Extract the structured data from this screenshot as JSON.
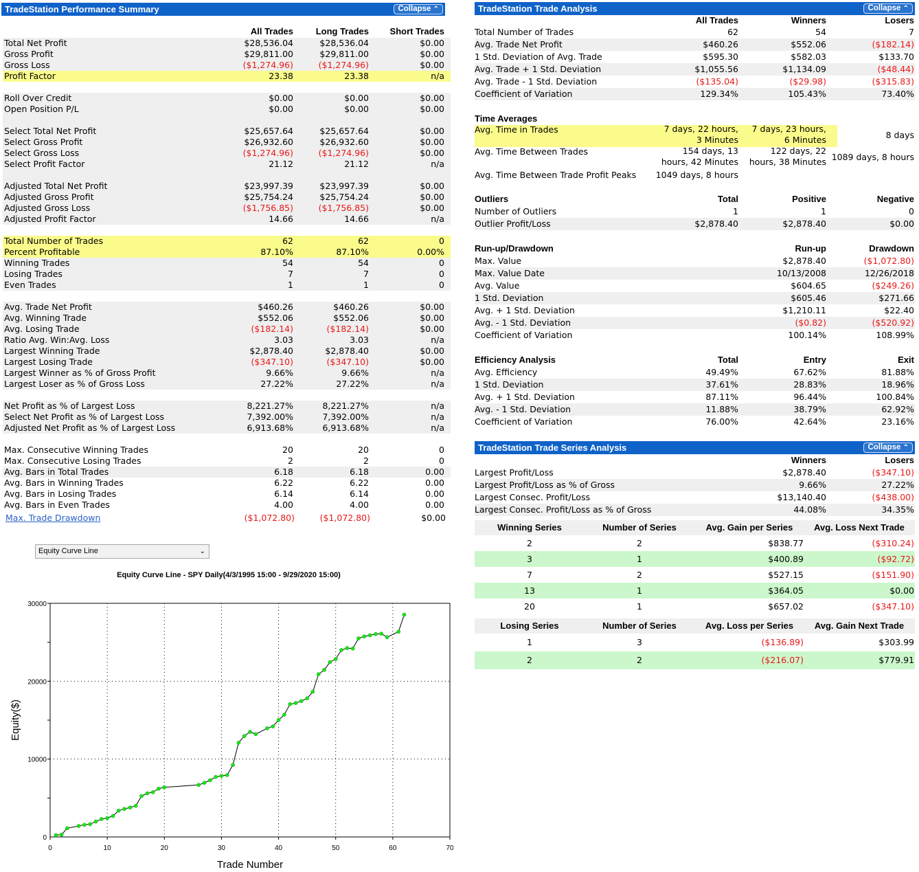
{
  "summary": {
    "title": "TradeStation Performance Summary",
    "collapse": "Collapse",
    "columns": [
      "All Trades",
      "Long Trades",
      "Short Trades"
    ],
    "rows": [
      {
        "label": "Total Net Profit",
        "v": [
          "$28,536.04",
          "$28,536.04",
          "$0.00"
        ],
        "style": "shade"
      },
      {
        "label": "Gross Profit",
        "v": [
          "$29,811.00",
          "$29,811.00",
          "$0.00"
        ],
        "style": "shade"
      },
      {
        "label": "Gross Loss",
        "v": [
          "($1,274.96)",
          "($1,274.96)",
          "$0.00"
        ],
        "style": "shade"
      },
      {
        "label": "Profit Factor",
        "v": [
          "23.38",
          "23.38",
          "n/a"
        ],
        "style": "hl"
      },
      {
        "label": "",
        "v": [
          "",
          "",
          ""
        ],
        "style": "gap"
      },
      {
        "label": "Roll Over Credit",
        "v": [
          "$0.00",
          "$0.00",
          "$0.00"
        ],
        "style": "shade"
      },
      {
        "label": "Open Position P/L",
        "v": [
          "$0.00",
          "$0.00",
          "$0.00"
        ],
        "style": "shade"
      },
      {
        "label": "",
        "v": [
          "",
          "",
          ""
        ],
        "style": "shade"
      },
      {
        "label": "Select Total Net Profit",
        "v": [
          "$25,657.64",
          "$25,657.64",
          "$0.00"
        ],
        "style": "shade"
      },
      {
        "label": "Select Gross Profit",
        "v": [
          "$26,932.60",
          "$26,932.60",
          "$0.00"
        ],
        "style": "shade"
      },
      {
        "label": "Select Gross Loss",
        "v": [
          "($1,274.96)",
          "($1,274.96)",
          "$0.00"
        ],
        "style": "shade"
      },
      {
        "label": "Select Profit Factor",
        "v": [
          "21.12",
          "21.12",
          "n/a"
        ],
        "style": "shade"
      },
      {
        "label": "",
        "v": [
          "",
          "",
          ""
        ],
        "style": "shade"
      },
      {
        "label": "Adjusted Total Net Profit",
        "v": [
          "$23,997.39",
          "$23,997.39",
          "$0.00"
        ],
        "style": "shade"
      },
      {
        "label": "Adjusted Gross Profit",
        "v": [
          "$25,754.24",
          "$25,754.24",
          "$0.00"
        ],
        "style": "shade"
      },
      {
        "label": "Adjusted Gross Loss",
        "v": [
          "($1,756.85)",
          "($1,756.85)",
          "$0.00"
        ],
        "style": "shade"
      },
      {
        "label": "Adjusted Profit Factor",
        "v": [
          "14.66",
          "14.66",
          "n/a"
        ],
        "style": "shade"
      },
      {
        "label": "",
        "v": [
          "",
          "",
          ""
        ],
        "style": "gap"
      },
      {
        "label": "Total Number of Trades",
        "v": [
          "62",
          "62",
          "0"
        ],
        "style": "hl"
      },
      {
        "label": "Percent Profitable",
        "v": [
          "87.10%",
          "87.10%",
          "0.00%"
        ],
        "style": "hl"
      },
      {
        "label": "Winning Trades",
        "v": [
          "54",
          "54",
          "0"
        ],
        "style": "shade"
      },
      {
        "label": "Losing Trades",
        "v": [
          "7",
          "7",
          "0"
        ],
        "style": "shade"
      },
      {
        "label": "Even Trades",
        "v": [
          "1",
          "1",
          "0"
        ],
        "style": "shade"
      },
      {
        "label": "",
        "v": [
          "",
          "",
          ""
        ],
        "style": "gap"
      },
      {
        "label": "Avg. Trade Net Profit",
        "v": [
          "$460.26",
          "$460.26",
          "$0.00"
        ],
        "style": "shade"
      },
      {
        "label": "Avg. Winning Trade",
        "v": [
          "$552.06",
          "$552.06",
          "$0.00"
        ],
        "style": "shade"
      },
      {
        "label": "Avg. Losing Trade",
        "v": [
          "($182.14)",
          "($182.14)",
          "$0.00"
        ],
        "style": "shade"
      },
      {
        "label": "Ratio Avg. Win:Avg. Loss",
        "v": [
          "3.03",
          "3.03",
          "n/a"
        ],
        "style": "shade"
      },
      {
        "label": "Largest Winning Trade",
        "v": [
          "$2,878.40",
          "$2,878.40",
          "$0.00"
        ],
        "style": "shade"
      },
      {
        "label": "Largest Losing Trade",
        "v": [
          "($347.10)",
          "($347.10)",
          "$0.00"
        ],
        "style": "shade"
      },
      {
        "label": "Largest Winner as % of Gross Profit",
        "v": [
          "9.66%",
          "9.66%",
          "n/a"
        ],
        "style": "shade"
      },
      {
        "label": "Largest Loser as % of Gross Loss",
        "v": [
          "27.22%",
          "27.22%",
          "n/a"
        ],
        "style": "shade"
      },
      {
        "label": "",
        "v": [
          "",
          "",
          ""
        ],
        "style": "gap"
      },
      {
        "label": "Net Profit as % of Largest Loss",
        "v": [
          "8,221.27%",
          "8,221.27%",
          "n/a"
        ],
        "style": "shade"
      },
      {
        "label": "Select Net Profit as % of Largest Loss",
        "v": [
          "7,392.00%",
          "7,392.00%",
          "n/a"
        ],
        "style": "shade"
      },
      {
        "label": "Adjusted Net Profit as % of Largest Loss",
        "v": [
          "6,913.68%",
          "6,913.68%",
          "n/a"
        ],
        "style": "shade"
      },
      {
        "label": "",
        "v": [
          "",
          "",
          ""
        ],
        "style": "gap"
      },
      {
        "label": "Max. Consecutive Winning Trades",
        "v": [
          "20",
          "20",
          "0"
        ],
        "style": "gap"
      },
      {
        "label": "Max. Consecutive Losing Trades",
        "v": [
          "2",
          "2",
          "0"
        ],
        "style": "gap"
      },
      {
        "label": "Avg. Bars in Total Trades",
        "v": [
          "6.18",
          "6.18",
          "0.00"
        ],
        "style": "shade"
      },
      {
        "label": "Avg. Bars in Winning Trades",
        "v": [
          "6.22",
          "6.22",
          "0.00"
        ],
        "style": "gap"
      },
      {
        "label": "Avg. Bars in Losing Trades",
        "v": [
          "6.14",
          "6.14",
          "0.00"
        ],
        "style": "gap"
      },
      {
        "label": "Avg. Bars in Even Trades",
        "v": [
          "4.00",
          "4.00",
          "0.00"
        ],
        "style": "gap"
      }
    ],
    "drawdown": {
      "label": "Max. Trade Drawdown",
      "v": [
        "($1,072.80)",
        "($1,072.80)",
        "$0.00"
      ]
    }
  },
  "dropdown": {
    "selected": "Equity Curve Line"
  },
  "chart_data": {
    "type": "line",
    "title": "Equity Curve Line - SPY Daily(4/3/1995 15:00 - 9/29/2020 15:00)",
    "xlabel": "Trade Number",
    "ylabel": "Equity($)",
    "xlim": [
      0,
      70
    ],
    "ylim": [
      0,
      30000
    ],
    "x_ticks": [
      "0",
      "10",
      "20",
      "30",
      "40",
      "50",
      "60",
      "70"
    ],
    "y_ticks": [
      "0",
      "10000",
      "20000",
      "30000"
    ],
    "grid": true,
    "color": "#19e619",
    "x": [
      1,
      2,
      3,
      5,
      6,
      7,
      8,
      9,
      10,
      11,
      12,
      13,
      14,
      15,
      16,
      17,
      18,
      19,
      20,
      26,
      27,
      28,
      29,
      30,
      31,
      32,
      33,
      34,
      35,
      36,
      38,
      39,
      40,
      41,
      42,
      43,
      44,
      45,
      46,
      47,
      48,
      49,
      50,
      51,
      52,
      53,
      54,
      55,
      56,
      57,
      58,
      59,
      61,
      62
    ],
    "y": [
      230,
      300,
      1120,
      1410,
      1560,
      1640,
      1980,
      2300,
      2430,
      2700,
      3380,
      3600,
      3780,
      4000,
      5250,
      5600,
      5750,
      6200,
      6380,
      6680,
      6950,
      7280,
      7700,
      7840,
      7950,
      9250,
      12100,
      12950,
      13500,
      13200,
      13950,
      14200,
      15000,
      15700,
      17050,
      17200,
      17450,
      17800,
      18650,
      20900,
      21450,
      22450,
      22850,
      24000,
      24250,
      24200,
      25500,
      25750,
      25900,
      26050,
      26100,
      25650,
      26350,
      28536
    ]
  },
  "analysis": {
    "title": "TradeStation Trade Analysis",
    "collapse": "Collapse",
    "columns": [
      "All Trades",
      "Winners",
      "Losers"
    ],
    "rows": [
      {
        "label": "Total Number of Trades",
        "v": [
          "62",
          "54",
          "7"
        ]
      },
      {
        "label": "Avg. Trade Net Profit",
        "v": [
          "$460.26",
          "$552.06",
          "($182.14)"
        ]
      },
      {
        "label": "1 Std. Deviation of Avg. Trade",
        "v": [
          "$595.30",
          "$582.03",
          "$133.70"
        ]
      },
      {
        "label": "Avg. Trade + 1 Std. Deviation",
        "v": [
          "$1,055.56",
          "$1,134.09",
          "($48.44)"
        ]
      },
      {
        "label": "Avg. Trade - 1 Std. Deviation",
        "v": [
          "($135.04)",
          "($29.98)",
          "($315.83)"
        ]
      },
      {
        "label": "Coefficient of Variation",
        "v": [
          "129.34%",
          "105.43%",
          "73.40%"
        ]
      }
    ],
    "time": {
      "heading": "Time Averages",
      "in_trades": {
        "label": "Avg. Time in Trades",
        "v1a": "7 days, 22 hours,",
        "v1b": "3 Minutes",
        "v2a": "7 days, 23 hours,",
        "v2b": "6 Minutes",
        "v3": "8 days"
      },
      "between": {
        "label": "Avg. Time Between Trades",
        "v1a": "154 days, 13",
        "v1b": "hours, 42 Minutes",
        "v2a": "122 days, 22",
        "v2b": "hours, 38 Minutes",
        "v3": "1089 days, 8 hours"
      },
      "peaks": {
        "label": "Avg. Time Between Trade Profit Peaks",
        "v1": "1049 days, 8 hours"
      }
    },
    "outliers": {
      "heading": "Outliers",
      "columns": [
        "Total",
        "Positive",
        "Negative"
      ],
      "rows": [
        {
          "label": "Number of Outliers",
          "v": [
            "1",
            "1",
            "0"
          ]
        },
        {
          "label": "Outlier Profit/Loss",
          "v": [
            "$2,878.40",
            "$2,878.40",
            "$0.00"
          ]
        }
      ]
    },
    "runup": {
      "heading": "Run-up/Drawdown",
      "columns": [
        "Run-up",
        "Drawdown"
      ],
      "rows": [
        {
          "label": "Max. Value",
          "v": [
            "$2,878.40",
            "($1,072.80)"
          ]
        },
        {
          "label": "Max. Value Date",
          "v": [
            "10/13/2008",
            "12/26/2018"
          ]
        },
        {
          "label": "Avg. Value",
          "v": [
            "$604.65",
            "($249.26)"
          ]
        },
        {
          "label": "1 Std. Deviation",
          "v": [
            "$605.46",
            "$271.66"
          ]
        },
        {
          "label": "Avg. + 1 Std. Deviation",
          "v": [
            "$1,210.11",
            "$22.40"
          ]
        },
        {
          "label": "Avg. - 1 Std. Deviation",
          "v": [
            "($0.82)",
            "($520.92)"
          ]
        },
        {
          "label": "Coefficient of Variation",
          "v": [
            "100.14%",
            "108.99%"
          ]
        }
      ]
    },
    "efficiency": {
      "heading": "Efficiency Analysis",
      "columns": [
        "Total",
        "Entry",
        "Exit"
      ],
      "rows": [
        {
          "label": "Avg. Efficiency",
          "v": [
            "49.49%",
            "67.62%",
            "81.88%"
          ]
        },
        {
          "label": "1 Std. Deviation",
          "v": [
            "37.61%",
            "28.83%",
            "18.96%"
          ]
        },
        {
          "label": "Avg. + 1 Std. Deviation",
          "v": [
            "87.11%",
            "96.44%",
            "100.84%"
          ]
        },
        {
          "label": "Avg. - 1 Std. Deviation",
          "v": [
            "11.88%",
            "38.79%",
            "62.92%"
          ]
        },
        {
          "label": "Coefficient of Variation",
          "v": [
            "76.00%",
            "42.64%",
            "23.16%"
          ]
        }
      ]
    }
  },
  "series": {
    "title": "TradeStation Trade Series Analysis",
    "collapse": "Collapse",
    "columns": [
      "Winners",
      "Losers"
    ],
    "rows": [
      {
        "label": "Largest Profit/Loss",
        "v": [
          "$2,878.40",
          "($347.10)"
        ]
      },
      {
        "label": "Largest Profit/Loss as % of Gross",
        "v": [
          "9.66%",
          "27.22%"
        ]
      },
      {
        "label": "Largest Consec. Profit/Loss",
        "v": [
          "$13,140.40",
          "($438.00)"
        ]
      },
      {
        "label": "Largest Consec. Profit/Loss as % of Gross",
        "v": [
          "44.08%",
          "34.35%"
        ]
      }
    ],
    "winning": {
      "columns": [
        "Winning Series",
        "Number of Series",
        "Avg. Gain per Series",
        "Avg. Loss Next Trade"
      ],
      "rows": [
        [
          "2",
          "2",
          "$838.77",
          "($310.24)"
        ],
        [
          "3",
          "1",
          "$400.89",
          "($92.72)"
        ],
        [
          "7",
          "2",
          "$527.15",
          "($151.90)"
        ],
        [
          "13",
          "1",
          "$364.05",
          "$0.00"
        ],
        [
          "20",
          "1",
          "$657.02",
          "($347.10)"
        ]
      ]
    },
    "losing": {
      "columns": [
        "Losing Series",
        "Number of Series",
        "Avg. Loss per Series",
        "Avg. Gain Next Trade"
      ],
      "rows": [
        [
          "1",
          "3",
          "($136.89)",
          "$303.99"
        ],
        [
          "2",
          "2",
          "($216.07)",
          "$779.91"
        ]
      ]
    }
  }
}
